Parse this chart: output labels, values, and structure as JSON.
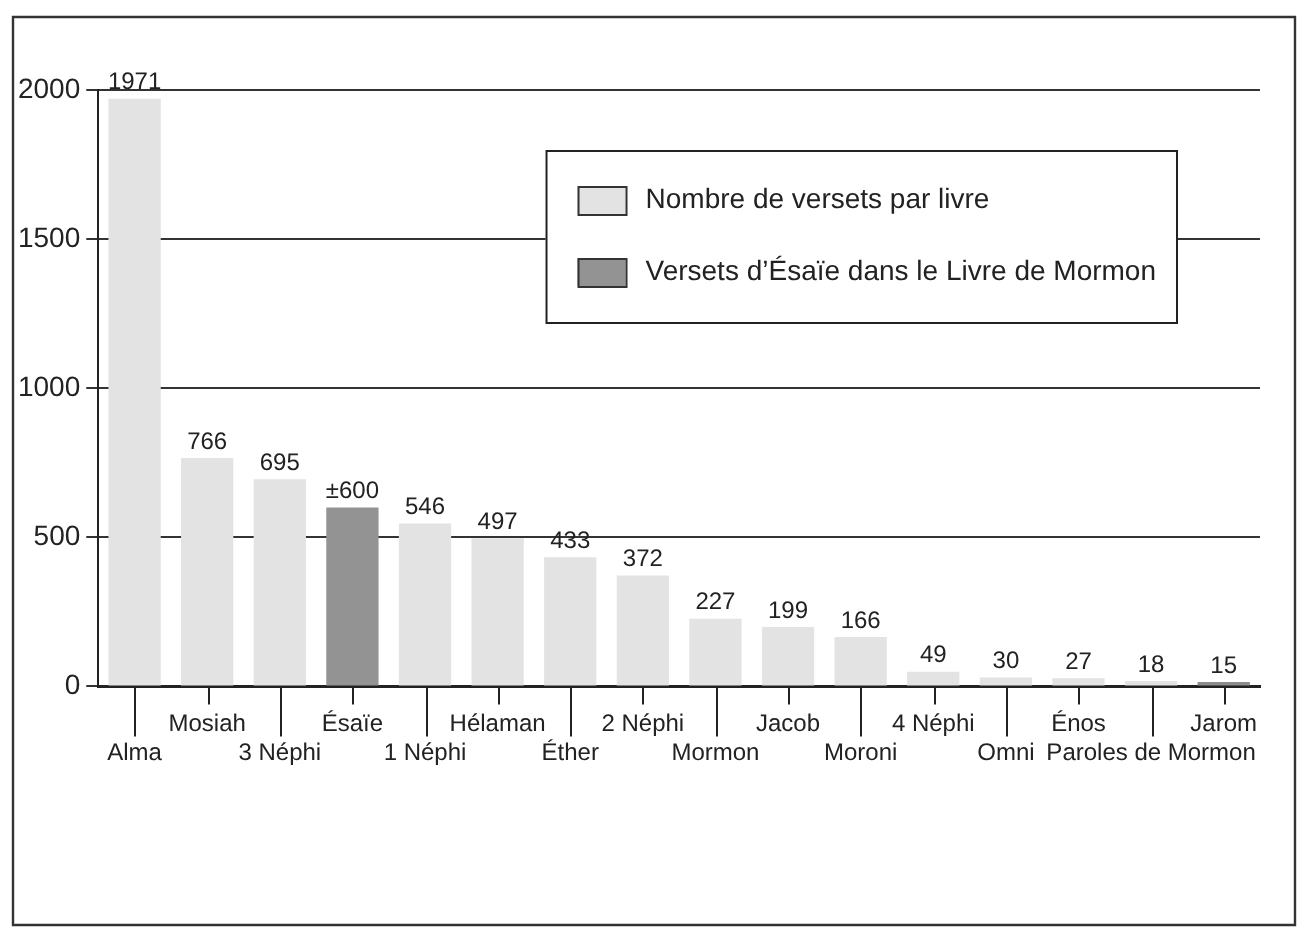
{
  "chart_data": {
    "type": "bar",
    "categories": [
      "Alma",
      "Mosiah",
      "3 Néphi",
      "Ésaïe",
      "1 Néphi",
      "Hélaman",
      "Éther",
      "2 Néphi",
      "Mormon",
      "Jacob",
      "Moroni",
      "4 Néphi",
      "Omni",
      "Énos",
      "Paroles de Mormon",
      "Jarom"
    ],
    "series": [
      {
        "name": "Nombre de versets par livre",
        "color": "#e3e3e3",
        "colors": [
          "#e3e3e3",
          "#e3e3e3",
          "#e3e3e3",
          "#e3e3e3",
          "#e3e3e3",
          "#e3e3e3",
          "#e3e3e3",
          "#e3e3e3",
          "#e3e3e3",
          "#e3e3e3",
          "#e3e3e3",
          "#e3e3e3",
          "#e3e3e3",
          "#e3e3e3",
          "#e3e3e3",
          "#8c8c8c"
        ],
        "values": [
          1971,
          766,
          695,
          null,
          546,
          497,
          433,
          372,
          227,
          199,
          166,
          49,
          30,
          27,
          18,
          15
        ]
      },
      {
        "name": "Versets d’Ésaïe dans le Livre de Mormon",
        "color": "#939393",
        "values": [
          null,
          null,
          null,
          600,
          null,
          null,
          null,
          null,
          null,
          null,
          null,
          null,
          null,
          null,
          null,
          null
        ],
        "value_labels": [
          null,
          null,
          null,
          "±600",
          null,
          null,
          null,
          null,
          null,
          null,
          null,
          null,
          null,
          null,
          null,
          null
        ]
      }
    ],
    "ylim": [
      0,
      2000
    ],
    "yticks": [
      0,
      500,
      1000,
      1500,
      2000
    ],
    "grid": "y",
    "legend": "top right",
    "data_labels": true
  }
}
